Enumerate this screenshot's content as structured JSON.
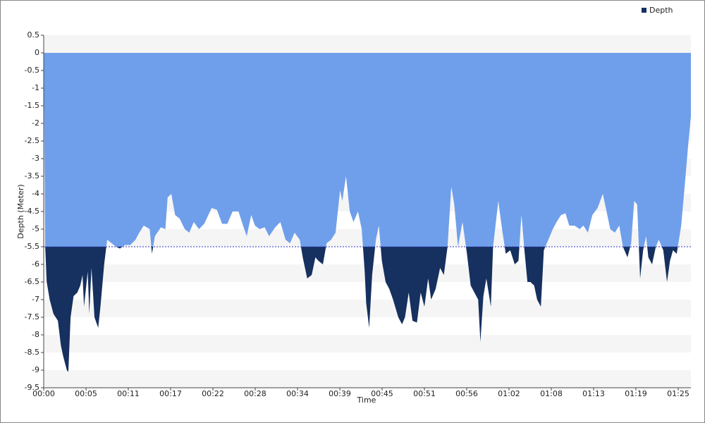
{
  "chart_data": {
    "type": "area",
    "x_label": "Time",
    "y_label": "Depth (Meter)",
    "xlim": [
      0,
      86.7
    ],
    "xticks": [
      {
        "value": 0,
        "label": "00:00"
      },
      {
        "value": 5.67,
        "label": "00:05"
      },
      {
        "value": 11.33,
        "label": "00:11"
      },
      {
        "value": 17,
        "label": "00:17"
      },
      {
        "value": 22.67,
        "label": "00:22"
      },
      {
        "value": 28.33,
        "label": "00:28"
      },
      {
        "value": 34,
        "label": "00:34"
      },
      {
        "value": 39.67,
        "label": "00:39"
      },
      {
        "value": 45.33,
        "label": "00:45"
      },
      {
        "value": 51,
        "label": "00:51"
      },
      {
        "value": 56.67,
        "label": "00:56"
      },
      {
        "value": 62.33,
        "label": "01:02"
      },
      {
        "value": 68,
        "label": "01:08"
      },
      {
        "value": 73.67,
        "label": "01:13"
      },
      {
        "value": 79.33,
        "label": "01:19"
      },
      {
        "value": 85,
        "label": "01:25"
      }
    ],
    "ylim": [
      -9.5,
      0.5
    ],
    "yticks": [
      0.5,
      0,
      -0.5,
      -1,
      -1.5,
      -2,
      -2.5,
      -3,
      -3.5,
      -4,
      -4.5,
      -5,
      -5.5,
      -6,
      -6.5,
      -7,
      -7.5,
      -8,
      -8.5,
      -9,
      -9.5
    ],
    "reference_line": -5.5,
    "legend": "top-right",
    "x": [
      0,
      0.2,
      0.4,
      0.8,
      1.3,
      1.9,
      2.3,
      2.6,
      3.1,
      3.3,
      3.6,
      4.0,
      4.5,
      4.9,
      5.2,
      5.4,
      5.9,
      6.1,
      6.4,
      6.8,
      7.3,
      7.6,
      8.1,
      8.5,
      9.1,
      9.7,
      10.2,
      10.9,
      11.6,
      12.3,
      12.8,
      13.4,
      14.2,
      14.5,
      14.9,
      15.7,
      16.3,
      16.6,
      17.1,
      17.6,
      18.2,
      18.9,
      19.5,
      20.1,
      20.8,
      21.5,
      22.5,
      23.2,
      23.9,
      24.6,
      25.3,
      26.1,
      26.7,
      27.2,
      27.8,
      28.3,
      28.9,
      29.6,
      30.2,
      31.0,
      31.7,
      32.4,
      33.0,
      33.6,
      34.3,
      34.7,
      35.3,
      35.9,
      36.4,
      36.8,
      37.4,
      37.9,
      38.5,
      39.1,
      39.7,
      40.0,
      40.5,
      41.0,
      41.5,
      42.1,
      42.6,
      43.0,
      43.2,
      43.6,
      44.0,
      44.5,
      44.9,
      45.3,
      45.8,
      46.3,
      46.8,
      47.5,
      48.0,
      48.4,
      48.9,
      49.4,
      50.0,
      50.5,
      51.0,
      51.5,
      51.9,
      52.5,
      53.1,
      53.6,
      54.1,
      54.6,
      55.0,
      55.5,
      56.1,
      56.7,
      57.2,
      57.7,
      58.2,
      58.5,
      58.9,
      59.3,
      59.9,
      60.2,
      60.9,
      61.4,
      61.9,
      62.5,
      63.1,
      63.6,
      64.0,
      64.4,
      64.8,
      65.2,
      65.7,
      66.1,
      66.6,
      67.0,
      67.6,
      68.2,
      68.7,
      69.3,
      69.9,
      70.4,
      71.1,
      71.8,
      72.3,
      72.9,
      73.5,
      74.2,
      74.9,
      75.4,
      75.9,
      76.5,
      77.1,
      77.6,
      78.2,
      78.7,
      79.1,
      79.5,
      79.9,
      80.3,
      80.7,
      81.0,
      81.5,
      82.0,
      82.4,
      83.0,
      83.5,
      83.9,
      84.3,
      84.8,
      85.4,
      85.9,
      86.3,
      86.7
    ],
    "series": [
      {
        "name": "Depth",
        "color": "#16305f",
        "upper_color": "#6f9fea",
        "values": [
          0,
          -5.5,
          -6.5,
          -7.0,
          -7.4,
          -7.6,
          -8.3,
          -8.6,
          -9.0,
          -9.05,
          -7.5,
          -6.9,
          -6.8,
          -6.6,
          -6.3,
          -7.2,
          -6.2,
          -7.4,
          -6.1,
          -7.5,
          -7.8,
          -7.2,
          -6.0,
          -5.3,
          -5.4,
          -5.5,
          -5.55,
          -5.45,
          -5.45,
          -5.3,
          -5.1,
          -4.9,
          -5.0,
          -5.7,
          -5.2,
          -4.95,
          -5.0,
          -4.1,
          -4.0,
          -4.6,
          -4.7,
          -5.0,
          -5.1,
          -4.8,
          -5.0,
          -4.85,
          -4.4,
          -4.45,
          -4.85,
          -4.85,
          -4.5,
          -4.5,
          -4.9,
          -5.2,
          -4.6,
          -4.9,
          -5.0,
          -4.95,
          -5.2,
          -4.95,
          -4.8,
          -5.3,
          -5.4,
          -5.1,
          -5.3,
          -5.8,
          -6.4,
          -6.3,
          -5.8,
          -5.9,
          -6.0,
          -5.4,
          -5.3,
          -5.1,
          -3.9,
          -4.2,
          -3.5,
          -4.5,
          -4.8,
          -4.5,
          -5.0,
          -6.2,
          -7.1,
          -7.8,
          -6.3,
          -5.3,
          -4.9,
          -5.9,
          -6.5,
          -6.7,
          -7.0,
          -7.5,
          -7.7,
          -7.5,
          -6.8,
          -7.6,
          -7.65,
          -6.8,
          -7.2,
          -6.4,
          -7.0,
          -6.7,
          -6.1,
          -6.3,
          -5.5,
          -3.8,
          -4.3,
          -5.5,
          -4.8,
          -5.7,
          -6.6,
          -6.8,
          -7.0,
          -8.2,
          -6.9,
          -6.4,
          -7.2,
          -5.5,
          -4.2,
          -5.0,
          -5.7,
          -5.6,
          -6.0,
          -5.9,
          -4.6,
          -5.6,
          -6.5,
          -6.5,
          -6.6,
          -7.0,
          -7.2,
          -5.6,
          -5.3,
          -5.0,
          -4.8,
          -4.6,
          -4.55,
          -4.9,
          -4.9,
          -5.0,
          -4.9,
          -5.1,
          -4.6,
          -4.4,
          -4.0,
          -4.5,
          -5.0,
          -5.1,
          -4.9,
          -5.5,
          -5.8,
          -5.4,
          -4.2,
          -4.3,
          -6.4,
          -5.6,
          -5.2,
          -5.8,
          -6.0,
          -5.5,
          -5.3,
          -5.6,
          -6.5,
          -5.9,
          -5.6,
          -5.7,
          -4.9,
          -3.7,
          -2.7,
          -1.8
        ]
      }
    ]
  }
}
